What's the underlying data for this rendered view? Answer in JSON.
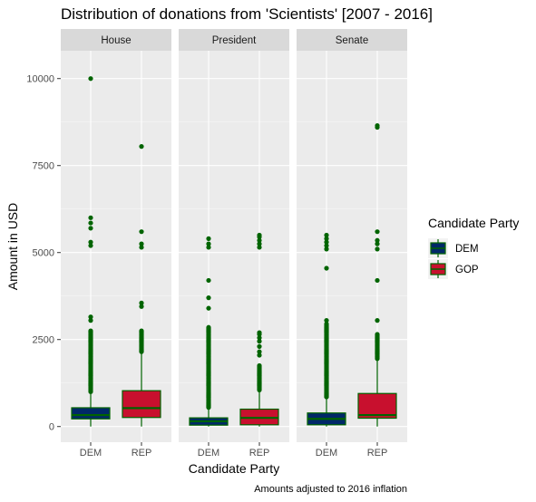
{
  "chart_data": {
    "type": "boxplot",
    "title": "Distribution of donations from 'Scientists' [2007 - 2016]",
    "xlabel": "Candidate Party",
    "ylabel": "Amount in USD",
    "caption": "Amounts adjusted to 2016 inflation",
    "ylim": [
      -450,
      10800
    ],
    "yticks": [
      0,
      2500,
      5000,
      7500,
      10000
    ],
    "yticklabels": [
      "0",
      "2500",
      "5000",
      "7500",
      "10000"
    ],
    "categories": [
      "DEM",
      "REP"
    ],
    "legend": {
      "title": "Candidate Party",
      "position": "right",
      "entries": [
        {
          "label": "DEM",
          "color": "#002868"
        },
        {
          "label": "GOP",
          "color": "#C8102E"
        }
      ]
    },
    "colors": {
      "outline": "#006400",
      "outlier": "#006400",
      "DEM": "#002868",
      "REP": "#C8102E",
      "panel": "#EBEBEB",
      "strip": "#D9D9D9",
      "grid_major": "#FFFFFF"
    },
    "facets": [
      {
        "name": "House",
        "boxes": [
          {
            "category": "DEM",
            "q1": 220,
            "median": 330,
            "q3": 540,
            "whisker_low": 0,
            "whisker_high": 1000,
            "outliers_dense": [
              1000,
              2750
            ],
            "outliers": [
              3050,
              3150,
              5200,
              5300,
              5700,
              5850,
              6000,
              10000
            ]
          },
          {
            "category": "REP",
            "q1": 260,
            "median": 530,
            "q3": 1030,
            "whisker_low": 0,
            "whisker_high": 2150,
            "outliers_dense": [
              2150,
              2750
            ],
            "outliers": [
              3450,
              3550,
              5150,
              5250,
              5600,
              8050
            ]
          }
        ]
      },
      {
        "name": "President",
        "boxes": [
          {
            "category": "DEM",
            "q1": 40,
            "median": 150,
            "q3": 250,
            "whisker_low": 0,
            "whisker_high": 550,
            "outliers_dense": [
              550,
              2850
            ],
            "outliers": [
              3400,
              3700,
              4200,
              5150,
              5250,
              5400
            ]
          },
          {
            "category": "REP",
            "q1": 50,
            "median": 250,
            "q3": 500,
            "whisker_low": 0,
            "whisker_high": 1050,
            "outliers_dense": [
              1050,
              1750
            ],
            "outliers": [
              2050,
              2150,
              2300,
              2450,
              2550,
              2650,
              2700,
              5150,
              5250,
              5350,
              5450,
              5500
            ]
          }
        ]
      },
      {
        "name": "Senate",
        "boxes": [
          {
            "category": "DEM",
            "q1": 50,
            "median": 220,
            "q3": 390,
            "whisker_low": 0,
            "whisker_high": 850,
            "outliers_dense": [
              850,
              2950
            ],
            "outliers": [
              3050,
              4550,
              5100,
              5200,
              5300,
              5400,
              5500
            ]
          },
          {
            "category": "REP",
            "q1": 240,
            "median": 330,
            "q3": 950,
            "whisker_low": 0,
            "whisker_high": 1950,
            "outliers_dense": [
              1950,
              2650
            ],
            "outliers": [
              3050,
              4200,
              5100,
              5250,
              5350,
              5600,
              8600,
              8650
            ]
          }
        ]
      }
    ]
  }
}
